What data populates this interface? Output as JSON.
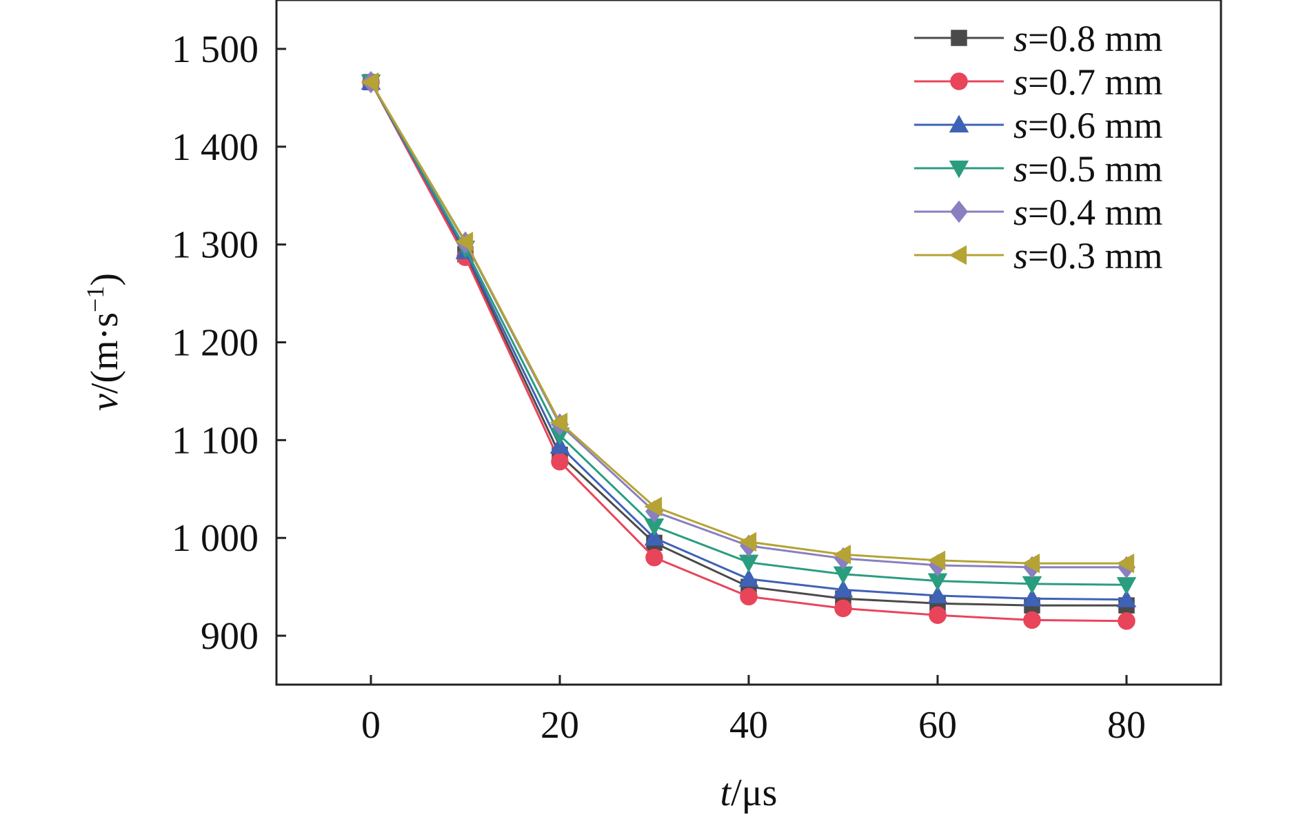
{
  "chart_data": {
    "type": "line",
    "x": [
      0,
      10,
      20,
      30,
      40,
      50,
      60,
      70,
      80
    ],
    "xlim": [
      -10,
      90
    ],
    "ylim": [
      850,
      1550
    ],
    "xticks": [
      0,
      20,
      40,
      60,
      80
    ],
    "yticks": [
      900,
      1000,
      1100,
      1200,
      1300,
      1400,
      1500
    ],
    "xtick_labels": [
      "0",
      "20",
      "40",
      "60",
      "80"
    ],
    "ytick_labels": [
      "900",
      "1 000",
      "1 100",
      "1 200",
      "1 300",
      "1 400",
      "1 500"
    ],
    "xlabel": {
      "var": "t",
      "unit": "/μs"
    },
    "ylabel": {
      "var": "v",
      "unit_pre": "/(m·s",
      "unit_sup": "−1",
      "unit_post": ")"
    },
    "grid": false,
    "legend_position": "top-right",
    "series": [
      {
        "name": "s=0.8 mm",
        "name_var": "s",
        "name_rest": "=0.8 mm",
        "color": "#4a4a4a",
        "marker": "square",
        "values": [
          1466,
          1290,
          1085,
          995,
          950,
          938,
          933,
          931,
          931
        ]
      },
      {
        "name": "s=0.7 mm",
        "name_var": "s",
        "name_rest": "=0.7 mm",
        "color": "#e8455a",
        "marker": "circle",
        "values": [
          1466,
          1287,
          1078,
          980,
          940,
          928,
          921,
          916,
          915
        ]
      },
      {
        "name": "s=0.6 mm",
        "name_var": "s",
        "name_rest": "=0.6 mm",
        "color": "#3e62b5",
        "marker": "triangle-up",
        "values": [
          1466,
          1293,
          1094,
          1000,
          958,
          947,
          941,
          938,
          937
        ]
      },
      {
        "name": "s=0.5 mm",
        "name_var": "s",
        "name_rest": "=0.5 mm",
        "color": "#2a9d7f",
        "marker": "triangle-down",
        "values": [
          1466,
          1296,
          1105,
          1012,
          975,
          963,
          956,
          953,
          952
        ]
      },
      {
        "name": "s=0.4 mm",
        "name_var": "s",
        "name_rest": "=0.4 mm",
        "color": "#8a7fc0",
        "marker": "diamond",
        "values": [
          1466,
          1302,
          1116,
          1027,
          992,
          979,
          972,
          970,
          970
        ]
      },
      {
        "name": "s=0.3 mm",
        "name_var": "s",
        "name_rest": "=0.3 mm",
        "color": "#b5a334",
        "marker": "triangle-left",
        "values": [
          1466,
          1303,
          1118,
          1032,
          996,
          983,
          977,
          974,
          974
        ]
      }
    ]
  }
}
